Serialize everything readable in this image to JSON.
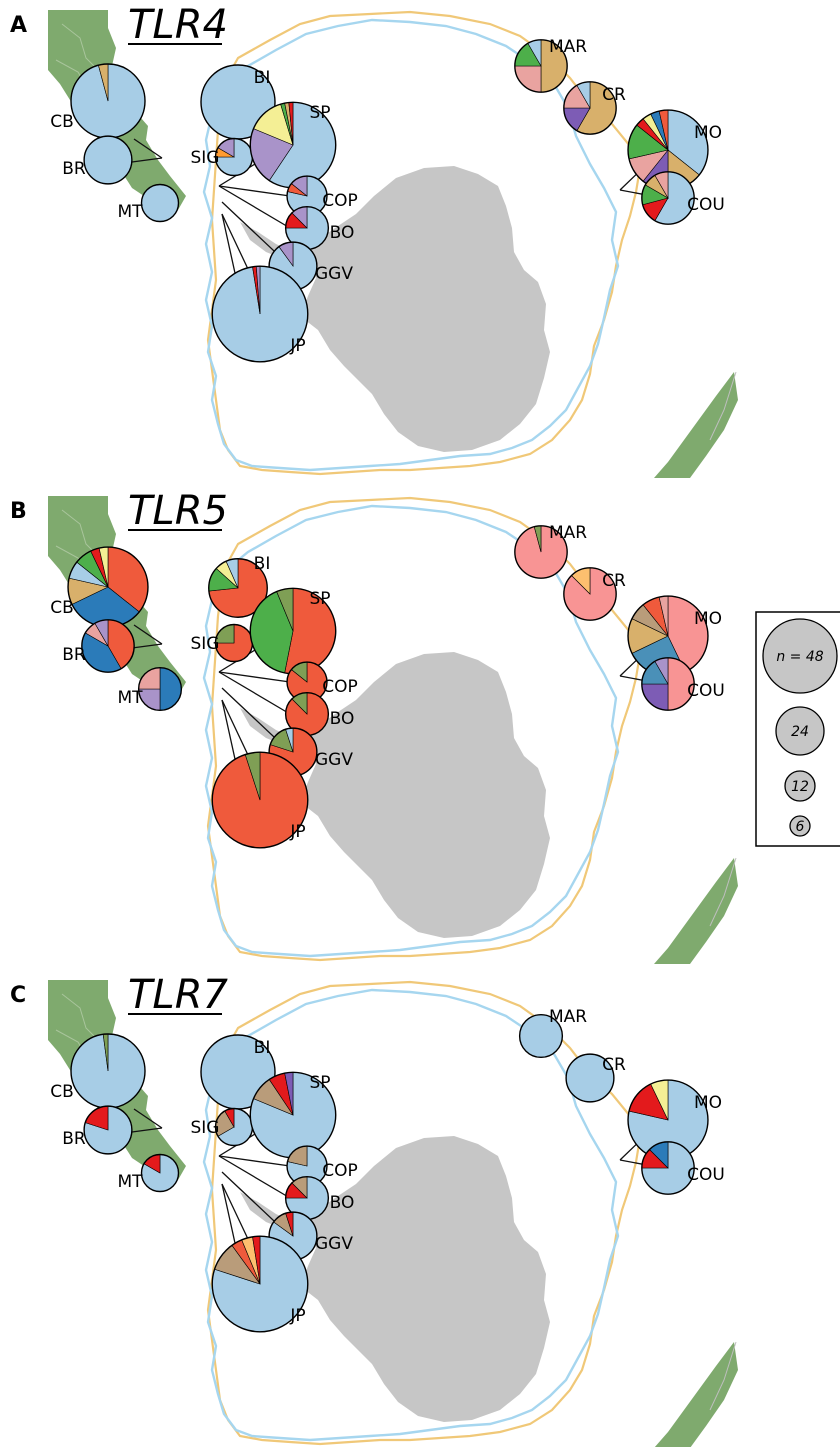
{
  "figure": {
    "legend": {
      "items": [
        {
          "label": "n = 48",
          "n": 48
        },
        {
          "label": "24",
          "n": 24
        },
        {
          "label": "12",
          "n": 12
        },
        {
          "label": "6",
          "n": 6
        }
      ]
    },
    "palette": {
      "blue": "#a7cde6",
      "darkblue": "#2b7bb9",
      "midblue": "#4a90b8",
      "orange": "#ef5a3c",
      "red": "#e31a1c",
      "green": "#4daf4a",
      "olive": "#7f9f55",
      "tan": "#d8b06b",
      "brown": "#b99c7a",
      "purple": "#a993c9",
      "violet": "#7d5cb5",
      "pink": "#e9a3a0",
      "salmon": "#f89494",
      "yellow": "#f4ef95",
      "lightorange": "#fdbf6f",
      "orangeAlt": "#ff9b30",
      "land_green": "#7faa6e",
      "antarctica_gray": "#c6c6c6",
      "line_orange": "#f0c878",
      "line_blue": "#a6d6ef"
    },
    "panels": [
      {
        "letter": "A",
        "title": "TLR4",
        "sites": [
          {
            "code": "CB",
            "n": 48,
            "slices": [
              {
                "c": "blue",
                "v": 46
              },
              {
                "c": "tan",
                "v": 2
              }
            ]
          },
          {
            "code": "BR",
            "n": 20,
            "slices": [
              {
                "c": "blue",
                "v": 20
              }
            ]
          },
          {
            "code": "MT",
            "n": 12,
            "slices": [
              {
                "c": "blue",
                "v": 12
              }
            ]
          },
          {
            "code": "BI",
            "n": 48,
            "slices": [
              {
                "c": "blue",
                "v": 48
              }
            ]
          },
          {
            "code": "SIG",
            "n": 12,
            "slices": [
              {
                "c": "blue",
                "v": 9
              },
              {
                "c": "orangeAlt",
                "v": 1
              },
              {
                "c": "purple",
                "v": 2
              }
            ]
          },
          {
            "code": "SP",
            "n": 64,
            "slices": [
              {
                "c": "blue",
                "v": 38
              },
              {
                "c": "purple",
                "v": 14
              },
              {
                "c": "yellow",
                "v": 9
              },
              {
                "c": "green",
                "v": 1
              },
              {
                "c": "tan",
                "v": 1
              },
              {
                "c": "red",
                "v": 1
              }
            ]
          },
          {
            "code": "COP",
            "n": 14,
            "slices": [
              {
                "c": "blue",
                "v": 11
              },
              {
                "c": "orange",
                "v": 1
              },
              {
                "c": "purple",
                "v": 2
              }
            ]
          },
          {
            "code": "BO",
            "n": 16,
            "slices": [
              {
                "c": "blue",
                "v": 12
              },
              {
                "c": "red",
                "v": 2
              },
              {
                "c": "purple",
                "v": 2
              }
            ]
          },
          {
            "code": "GGV",
            "n": 20,
            "slices": [
              {
                "c": "blue",
                "v": 18
              },
              {
                "c": "purple",
                "v": 2
              }
            ]
          },
          {
            "code": "JP",
            "n": 80,
            "slices": [
              {
                "c": "blue",
                "v": 78
              },
              {
                "c": "red",
                "v": 1
              },
              {
                "c": "purple",
                "v": 1
              }
            ]
          },
          {
            "code": "MAR",
            "n": 24,
            "slices": [
              {
                "c": "tan",
                "v": 12
              },
              {
                "c": "pink",
                "v": 6
              },
              {
                "c": "green",
                "v": 4
              },
              {
                "c": "blue",
                "v": 2
              }
            ]
          },
          {
            "code": "CR",
            "n": 24,
            "slices": [
              {
                "c": "tan",
                "v": 14
              },
              {
                "c": "violet",
                "v": 4
              },
              {
                "c": "pink",
                "v": 4
              },
              {
                "c": "blue",
                "v": 2
              }
            ]
          },
          {
            "code": "MO",
            "n": 56,
            "slices": [
              {
                "c": "blue",
                "v": 20
              },
              {
                "c": "tan",
                "v": 8
              },
              {
                "c": "violet",
                "v": 6
              },
              {
                "c": "pink",
                "v": 6
              },
              {
                "c": "green",
                "v": 8
              },
              {
                "c": "red",
                "v": 2
              },
              {
                "c": "yellow",
                "v": 2
              },
              {
                "c": "darkblue",
                "v": 2
              },
              {
                "c": "orange",
                "v": 2
              }
            ]
          },
          {
            "code": "COU",
            "n": 24,
            "slices": [
              {
                "c": "blue",
                "v": 14
              },
              {
                "c": "red",
                "v": 3
              },
              {
                "c": "green",
                "v": 3
              },
              {
                "c": "tan",
                "v": 2
              },
              {
                "c": "pink",
                "v": 2
              }
            ]
          }
        ]
      },
      {
        "letter": "B",
        "title": "TLR5",
        "sites": [
          {
            "code": "CB",
            "n": 56,
            "slices": [
              {
                "c": "orange",
                "v": 20
              },
              {
                "c": "darkblue",
                "v": 18
              },
              {
                "c": "tan",
                "v": 6
              },
              {
                "c": "blue",
                "v": 4
              },
              {
                "c": "green",
                "v": 4
              },
              {
                "c": "red",
                "v": 2
              },
              {
                "c": "yellow",
                "v": 2
              }
            ]
          },
          {
            "code": "BR",
            "n": 24,
            "slices": [
              {
                "c": "orange",
                "v": 10
              },
              {
                "c": "darkblue",
                "v": 10
              },
              {
                "c": "pink",
                "v": 2
              },
              {
                "c": "purple",
                "v": 2
              }
            ]
          },
          {
            "code": "MT",
            "n": 16,
            "slices": [
              {
                "c": "darkblue",
                "v": 8
              },
              {
                "c": "purple",
                "v": 4
              },
              {
                "c": "pink",
                "v": 4
              }
            ]
          },
          {
            "code": "BI",
            "n": 30,
            "slices": [
              {
                "c": "orange",
                "v": 22
              },
              {
                "c": "green",
                "v": 4
              },
              {
                "c": "yellow",
                "v": 2
              },
              {
                "c": "blue",
                "v": 2
              }
            ]
          },
          {
            "code": "SIG",
            "n": 12,
            "slices": [
              {
                "c": "orange",
                "v": 9
              },
              {
                "c": "olive",
                "v": 3
              }
            ]
          },
          {
            "code": "SP",
            "n": 64,
            "slices": [
              {
                "c": "orange",
                "v": 34
              },
              {
                "c": "green",
                "v": 26
              },
              {
                "c": "olive",
                "v": 4
              }
            ]
          },
          {
            "code": "COP",
            "n": 14,
            "slices": [
              {
                "c": "orange",
                "v": 12
              },
              {
                "c": "olive",
                "v": 2
              }
            ]
          },
          {
            "code": "BO",
            "n": 16,
            "slices": [
              {
                "c": "orange",
                "v": 14
              },
              {
                "c": "olive",
                "v": 2
              }
            ]
          },
          {
            "code": "GGV",
            "n": 20,
            "slices": [
              {
                "c": "orange",
                "v": 16
              },
              {
                "c": "olive",
                "v": 3
              },
              {
                "c": "blue",
                "v": 1
              }
            ]
          },
          {
            "code": "JP",
            "n": 80,
            "slices": [
              {
                "c": "orange",
                "v": 76
              },
              {
                "c": "olive",
                "v": 4
              }
            ]
          },
          {
            "code": "MAR",
            "n": 24,
            "slices": [
              {
                "c": "salmon",
                "v": 23
              },
              {
                "c": "olive",
                "v": 1
              }
            ]
          },
          {
            "code": "CR",
            "n": 24,
            "slices": [
              {
                "c": "salmon",
                "v": 21
              },
              {
                "c": "lightorange",
                "v": 3
              }
            ]
          },
          {
            "code": "MO",
            "n": 56,
            "slices": [
              {
                "c": "salmon",
                "v": 24
              },
              {
                "c": "midblue",
                "v": 14
              },
              {
                "c": "tan",
                "v": 8
              },
              {
                "c": "brown",
                "v": 4
              },
              {
                "c": "orange",
                "v": 4
              },
              {
                "c": "pink",
                "v": 2
              }
            ]
          },
          {
            "code": "COU",
            "n": 24,
            "slices": [
              {
                "c": "salmon",
                "v": 12
              },
              {
                "c": "violet",
                "v": 6
              },
              {
                "c": "midblue",
                "v": 4
              },
              {
                "c": "purple",
                "v": 2
              }
            ]
          }
        ]
      },
      {
        "letter": "C",
        "title": "TLR7",
        "sites": [
          {
            "code": "CB",
            "n": 48,
            "slices": [
              {
                "c": "blue",
                "v": 47
              },
              {
                "c": "olive",
                "v": 1
              }
            ]
          },
          {
            "code": "BR",
            "n": 20,
            "slices": [
              {
                "c": "blue",
                "v": 16
              },
              {
                "c": "red",
                "v": 4
              }
            ]
          },
          {
            "code": "MT",
            "n": 12,
            "slices": [
              {
                "c": "blue",
                "v": 10
              },
              {
                "c": "red",
                "v": 2
              }
            ]
          },
          {
            "code": "BI",
            "n": 48,
            "slices": [
              {
                "c": "blue",
                "v": 48
              }
            ]
          },
          {
            "code": "SIG",
            "n": 12,
            "slices": [
              {
                "c": "blue",
                "v": 8
              },
              {
                "c": "brown",
                "v": 3
              },
              {
                "c": "red",
                "v": 1
              }
            ]
          },
          {
            "code": "SP",
            "n": 64,
            "slices": [
              {
                "c": "blue",
                "v": 52
              },
              {
                "c": "brown",
                "v": 6
              },
              {
                "c": "red",
                "v": 4
              },
              {
                "c": "violet",
                "v": 2
              }
            ]
          },
          {
            "code": "COP",
            "n": 14,
            "slices": [
              {
                "c": "blue",
                "v": 11
              },
              {
                "c": "brown",
                "v": 3
              }
            ]
          },
          {
            "code": "BO",
            "n": 16,
            "slices": [
              {
                "c": "blue",
                "v": 12
              },
              {
                "c": "red",
                "v": 2
              },
              {
                "c": "brown",
                "v": 2
              }
            ]
          },
          {
            "code": "GGV",
            "n": 20,
            "slices": [
              {
                "c": "blue",
                "v": 17
              },
              {
                "c": "brown",
                "v": 2
              },
              {
                "c": "red",
                "v": 1
              }
            ]
          },
          {
            "code": "JP",
            "n": 80,
            "slices": [
              {
                "c": "blue",
                "v": 64
              },
              {
                "c": "brown",
                "v": 8
              },
              {
                "c": "orange",
                "v": 3
              },
              {
                "c": "lightorange",
                "v": 3
              },
              {
                "c": "red",
                "v": 2
              }
            ]
          },
          {
            "code": "MAR",
            "n": 16,
            "slices": [
              {
                "c": "blue",
                "v": 16
              }
            ]
          },
          {
            "code": "CR",
            "n": 20,
            "slices": [
              {
                "c": "blue",
                "v": 20
              }
            ]
          },
          {
            "code": "MO",
            "n": 56,
            "slices": [
              {
                "c": "blue",
                "v": 44
              },
              {
                "c": "red",
                "v": 8
              },
              {
                "c": "yellow",
                "v": 4
              }
            ]
          },
          {
            "code": "COU",
            "n": 24,
            "slices": [
              {
                "c": "blue",
                "v": 18
              },
              {
                "c": "red",
                "v": 3
              },
              {
                "c": "darkblue",
                "v": 3
              }
            ]
          }
        ]
      }
    ]
  }
}
